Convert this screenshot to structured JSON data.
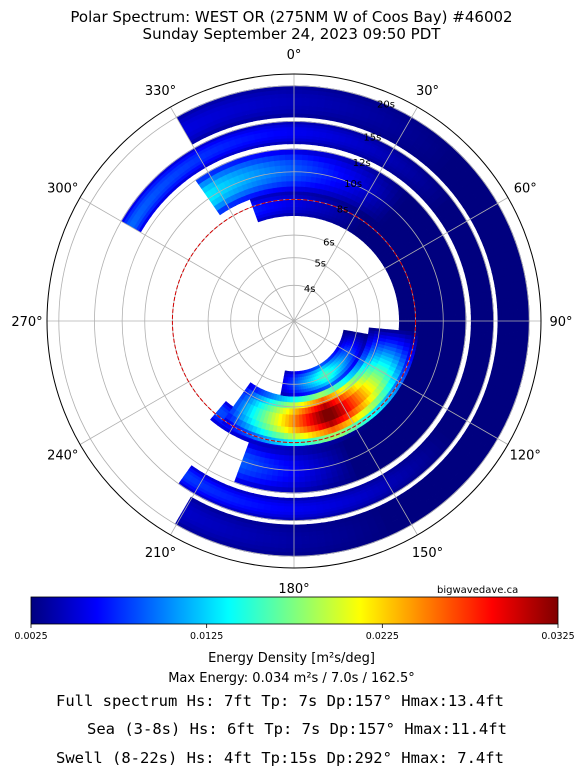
{
  "header": {
    "title": "Polar Spectrum: WEST OR (275NM W of Coos Bay) #46002",
    "subtitle": "Sunday September 24, 2023 09:50 PDT"
  },
  "chart_data": {
    "type": "polar-heatmap",
    "angle_labels": [
      "0°",
      "30°",
      "60°",
      "90°",
      "120°",
      "150°",
      "180°",
      "210°",
      "240°",
      "270°",
      "300°",
      "330°"
    ],
    "period_ticks": [
      "4s",
      "5s",
      "6s",
      "8s",
      "10s",
      "12s",
      "15s",
      "20s"
    ],
    "period_tick_values": [
      4,
      5,
      6,
      8,
      10,
      12,
      15,
      20
    ],
    "reference_circle_period": 8,
    "colorbar": {
      "ticks": [
        "0.0025",
        "0.0125",
        "0.0225",
        "0.0325"
      ],
      "min": 0.0025,
      "max": 0.0325,
      "colors": [
        "#00007f",
        "#0000ff",
        "#007fff",
        "#00ffff",
        "#7fff7f",
        "#ffff00",
        "#ff7f00",
        "#ff0000",
        "#7f0000"
      ]
    },
    "energy_bands": [
      {
        "label": "swell-outer-ring",
        "period_in": 15.5,
        "period_out": 20,
        "dir_start": 330,
        "dir_end": 210,
        "peak_dir": 280,
        "peak_energy": 0.007
      },
      {
        "label": "swell-middle-ring",
        "period_in": 12.5,
        "period_out": 15,
        "dir_start": 300,
        "dir_end": 215,
        "peak_dir": 270,
        "peak_energy": 0.011
      },
      {
        "label": "swell-main-crescent",
        "period_in": 8.5,
        "period_out": 12,
        "dir_start": 325,
        "dir_end": 200,
        "peak_dir": 280,
        "peak_energy": 0.019
      },
      {
        "label": "swell-inner-crescent",
        "period_in": 7,
        "period_out": 8.5,
        "dir_start": 340,
        "dir_end": 220,
        "peak_dir": 270,
        "peak_energy": 0.012
      },
      {
        "label": "sea-main-lobe",
        "period_in": 5.5,
        "period_out": 8.2,
        "dir_start": 95,
        "dir_end": 215,
        "peak_dir": 160,
        "peak_energy": 0.034
      },
      {
        "label": "sea-inner-band",
        "period_in": 4.5,
        "period_out": 5.5,
        "dir_start": 100,
        "dir_end": 190,
        "peak_dir": 150,
        "peak_energy": 0.016
      }
    ]
  },
  "colorbar_label": "Energy Density [m²s/deg]",
  "max_energy": "Max Energy: 0.034 m²s / 7.0s / 162.5°",
  "credit": "bigwavedave.ca",
  "stats": {
    "full": "Full spectrum Hs: 7ft Tp: 7s Dp:157° Hmax:13.4ft",
    "sea": "Sea (3-8s) Hs: 6ft Tp: 7s Dp:157° Hmax:11.4ft",
    "swell": "Swell (8-22s) Hs: 4ft Tp:15s Dp:292° Hmax: 7.4ft"
  }
}
